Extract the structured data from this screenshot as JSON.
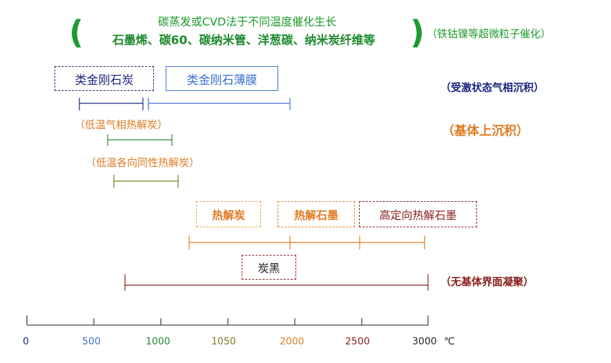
{
  "header": {
    "line1": "碳蒸发或CVD法于不同温度催化生长",
    "line2": "石墨烯、碳60、碳纳米管、洋葱碳、纳米炭纤维等",
    "paren_open": "(",
    "paren_close": ")",
    "catalyst_note": "（铁钴镍等超微粒子催化）"
  },
  "boxes": {
    "dlc": "类金刚石炭",
    "diamond_film": "类金刚石薄膜",
    "pyrocarbon": "热解炭",
    "pyrographite": "热解石墨",
    "hopg": "高定向热解石墨",
    "carbon_black": "炭黑"
  },
  "labels": {
    "excited_vapor": "（受激状态气相沉积）",
    "substrate_deposition": "（基体上沉积）",
    "low_temp_pyrolysis": "（低温气相热解炭）",
    "low_temp_isotropic": "（低温各向同性热解炭）",
    "no_substrate": "（无基体界面凝聚）"
  },
  "axis": {
    "unit": "℃",
    "ticks": [
      {
        "label": "0",
        "value": 0,
        "color": "#1a237e"
      },
      {
        "label": "500",
        "value": 500,
        "color": "#3b6fd4"
      },
      {
        "label": "1000",
        "value": 1000,
        "color": "#1e8a2e"
      },
      {
        "label": "1050",
        "value": 1050,
        "color": "#7a7a22"
      },
      {
        "label": "2000",
        "value": 2000,
        "color": "#e07b22"
      },
      {
        "label": "2500",
        "value": 2500,
        "color": "#8b1c1c"
      },
      {
        "label": "3000",
        "value": 3000,
        "color": "#222222"
      }
    ]
  },
  "colors": {
    "green": "#1e9a2e",
    "navy": "#1a237e",
    "blue": "#3b6fd4",
    "orange": "#e07b22",
    "olive": "#7a7a22",
    "darkred": "#8b1c1c"
  }
}
